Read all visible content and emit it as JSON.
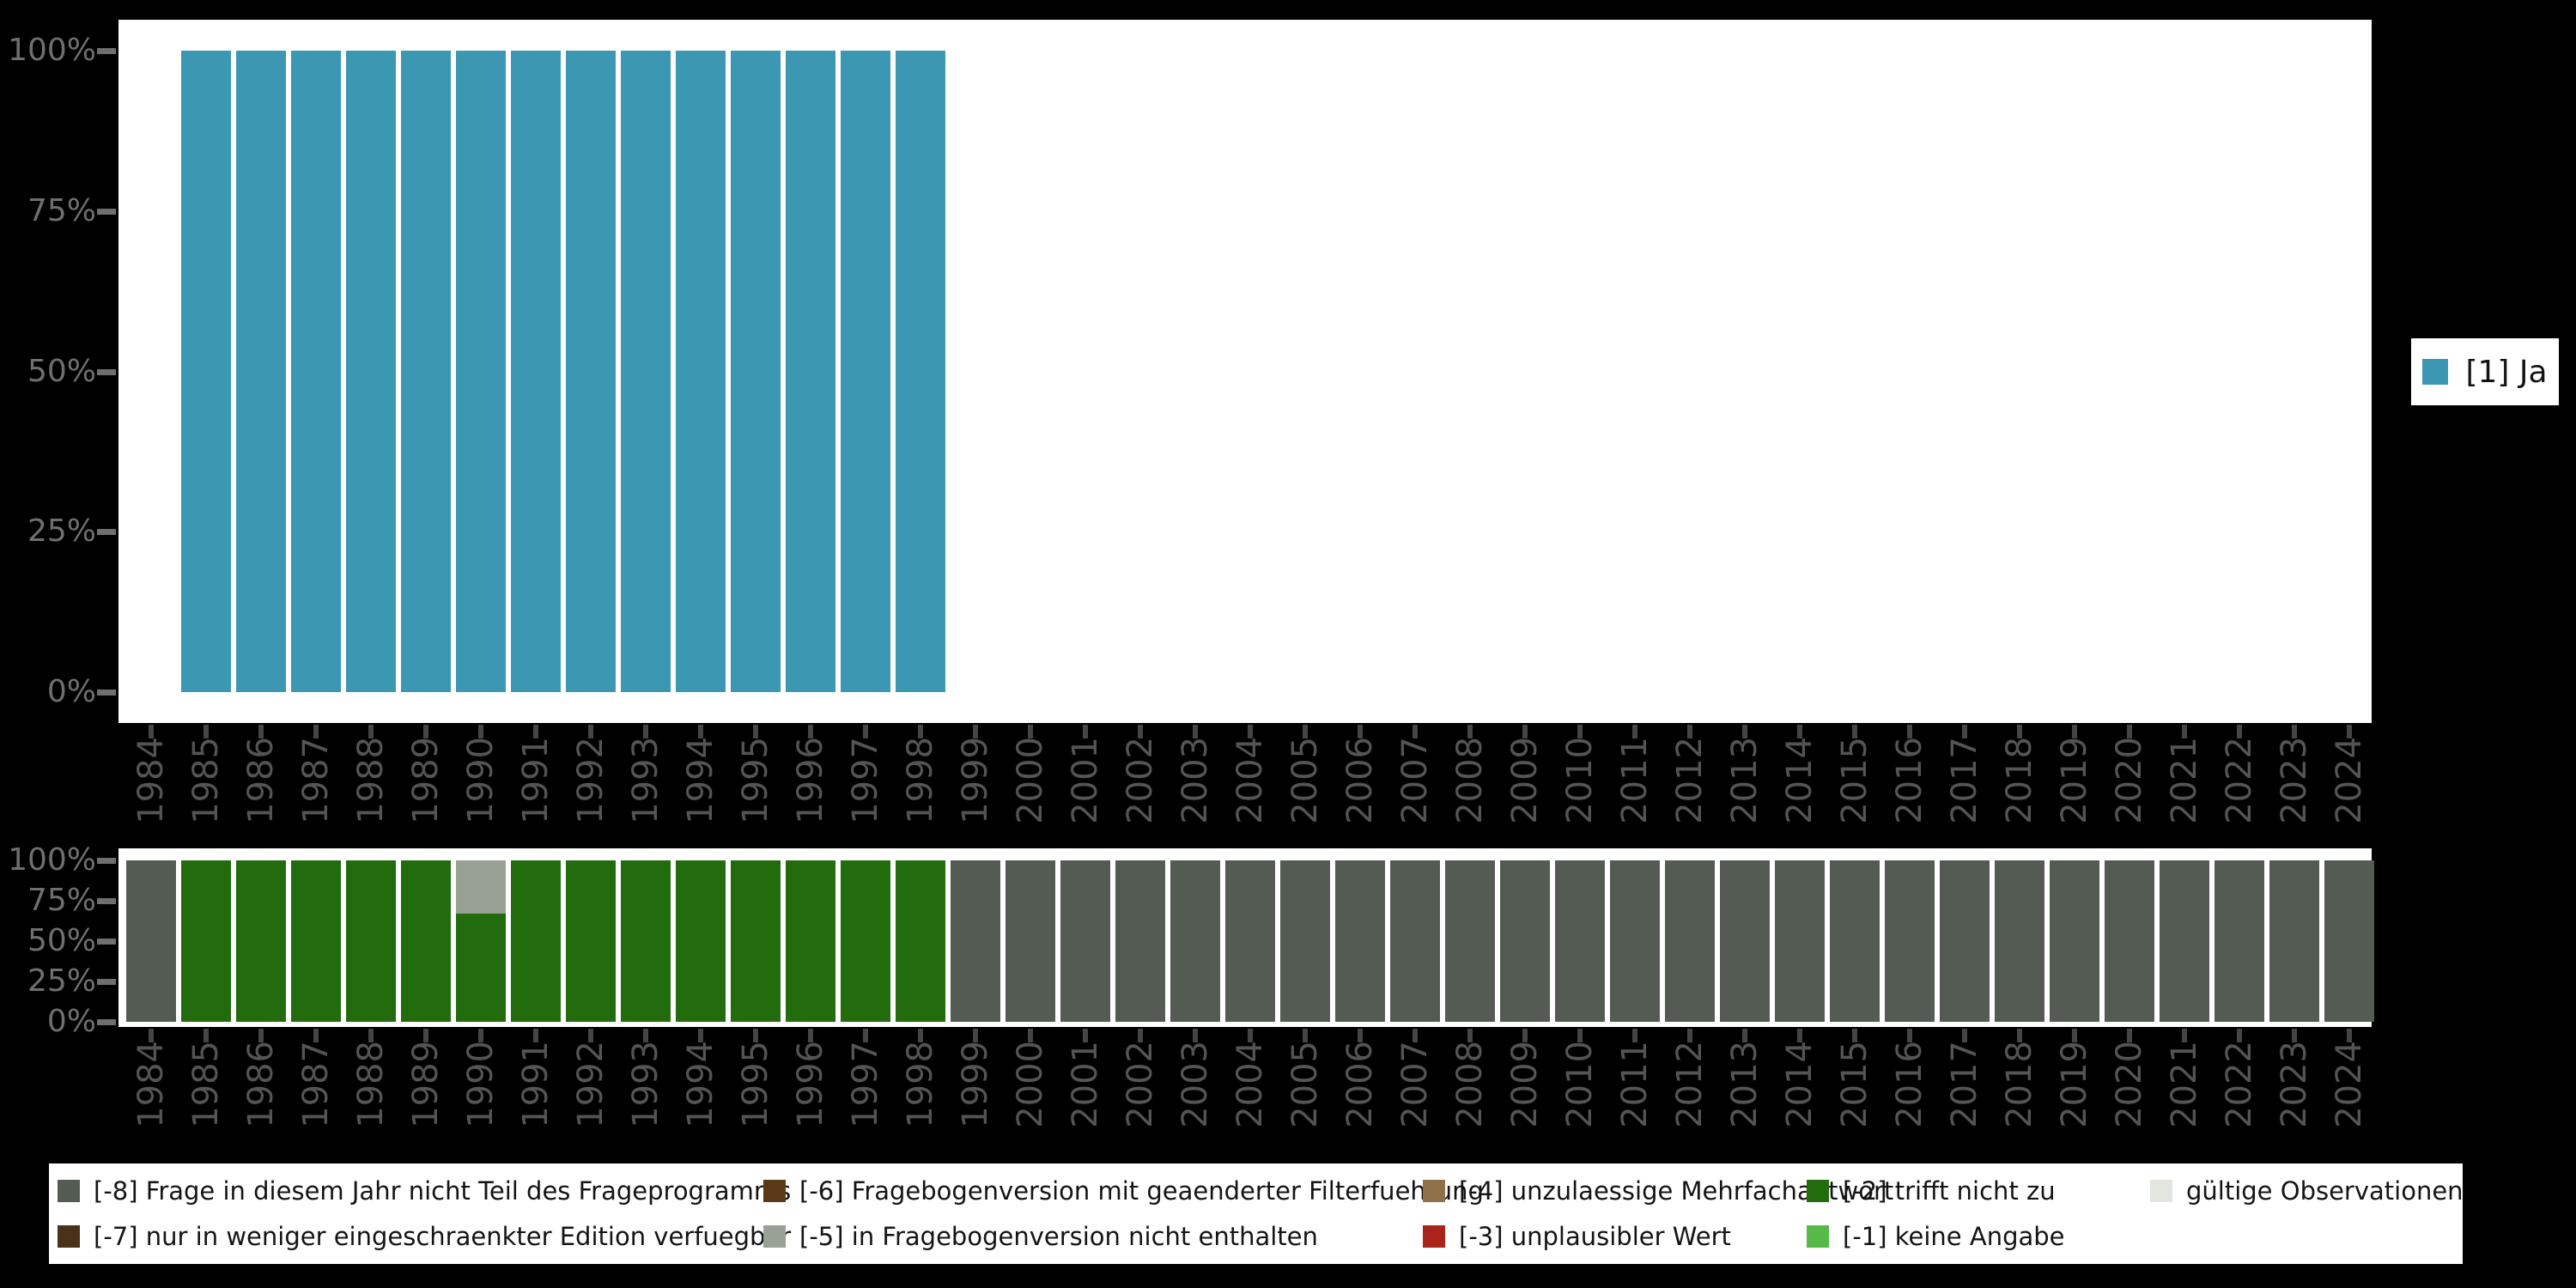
{
  "page": {
    "background": "#000000"
  },
  "chart_data": [
    {
      "id": "variable-frequencies",
      "type": "bar",
      "stacked": true,
      "title": "",
      "xlabel": "",
      "ylabel": "",
      "ylim": [
        0,
        100
      ],
      "grid": false,
      "legend_position": "right",
      "yticks": [
        "0%",
        "25%",
        "50%",
        "75%",
        "100%"
      ],
      "x": [
        1984,
        1985,
        1986,
        1987,
        1988,
        1989,
        1990,
        1991,
        1992,
        1993,
        1994,
        1995,
        1996,
        1997,
        1998,
        1999,
        2000,
        2001,
        2002,
        2003,
        2004,
        2005,
        2006,
        2007,
        2008,
        2009,
        2010,
        2011,
        2012,
        2013,
        2014,
        2015,
        2016,
        2017,
        2018,
        2019,
        2020,
        2021,
        2022,
        2023,
        2024
      ],
      "series": [
        {
          "name": "[1] Ja",
          "color": "#3C98B2",
          "values": [
            0,
            100,
            100,
            100,
            100,
            100,
            100,
            100,
            100,
            100,
            100,
            100,
            100,
            100,
            100,
            0,
            0,
            0,
            0,
            0,
            0,
            0,
            0,
            0,
            0,
            0,
            0,
            0,
            0,
            0,
            0,
            0,
            0,
            0,
            0,
            0,
            0,
            0,
            0,
            0,
            0
          ]
        }
      ]
    },
    {
      "id": "missing-values-by-year",
      "type": "bar",
      "stacked": true,
      "title": "",
      "xlabel": "",
      "ylabel": "",
      "ylim": [
        0,
        100
      ],
      "grid": false,
      "legend_position": "bottom",
      "yticks": [
        "0%",
        "25%",
        "50%",
        "75%",
        "100%"
      ],
      "x": [
        1984,
        1985,
        1986,
        1987,
        1988,
        1989,
        1990,
        1991,
        1992,
        1993,
        1994,
        1995,
        1996,
        1997,
        1998,
        1999,
        2000,
        2001,
        2002,
        2003,
        2004,
        2005,
        2006,
        2007,
        2008,
        2009,
        2010,
        2011,
        2012,
        2013,
        2014,
        2015,
        2016,
        2017,
        2018,
        2019,
        2020,
        2021,
        2022,
        2023,
        2024
      ],
      "series": [
        {
          "name": "[-2] trifft nicht zu",
          "color": "#236C0E",
          "values": [
            0,
            100,
            100,
            100,
            100,
            100,
            67,
            100,
            100,
            100,
            100,
            100,
            100,
            100,
            100,
            0,
            0,
            0,
            0,
            0,
            0,
            0,
            0,
            0,
            0,
            0,
            0,
            0,
            0,
            0,
            0,
            0,
            0,
            0,
            0,
            0,
            0,
            0,
            0,
            0,
            0
          ]
        },
        {
          "name": "[-5] in Fragebogenversion nicht enthalten",
          "color": "#99A095",
          "values": [
            0,
            0,
            0,
            0,
            0,
            0,
            33,
            0,
            0,
            0,
            0,
            0,
            0,
            0,
            0,
            0,
            0,
            0,
            0,
            0,
            0,
            0,
            0,
            0,
            0,
            0,
            0,
            0,
            0,
            0,
            0,
            0,
            0,
            0,
            0,
            0,
            0,
            0,
            0,
            0,
            0
          ]
        },
        {
          "name": "[-8] Frage in diesem Jahr nicht Teil des Frageprogramms",
          "color": "#545B53",
          "values": [
            100,
            0,
            0,
            0,
            0,
            0,
            0,
            0,
            0,
            0,
            0,
            0,
            0,
            0,
            0,
            100,
            100,
            100,
            100,
            100,
            100,
            100,
            100,
            100,
            100,
            100,
            100,
            100,
            100,
            100,
            100,
            100,
            100,
            100,
            100,
            100,
            100,
            100,
            100,
            100,
            100
          ]
        }
      ]
    }
  ],
  "top_legend": {
    "items": [
      {
        "label": "[1] Ja",
        "color": "#3C98B2"
      }
    ]
  },
  "bottom_legend": {
    "items": [
      {
        "label": "[-8] Frage in diesem Jahr nicht Teil des Frageprogramms",
        "color": "#545B53"
      },
      {
        "label": "[-7] nur in weniger eingeschraenkter Edition verfuegbar",
        "color": "#4A3218"
      },
      {
        "label": "[-6] Fragebogenversion mit geaenderter Filterfuehrung",
        "color": "#5A3917"
      },
      {
        "label": "[-5] in Fragebogenversion nicht enthalten",
        "color": "#99A095"
      },
      {
        "label": "[-4] unzulaessige Mehrfachantwort",
        "color": "#8F7048"
      },
      {
        "label": "[-3] unplausibler Wert",
        "color": "#A9241A"
      },
      {
        "label": "[-2] trifft nicht zu",
        "color": "#236C0E"
      },
      {
        "label": "[-1] keine Angabe",
        "color": "#56B948"
      },
      {
        "label": "gültige Observationen",
        "color": "#E2E6DF"
      }
    ]
  }
}
